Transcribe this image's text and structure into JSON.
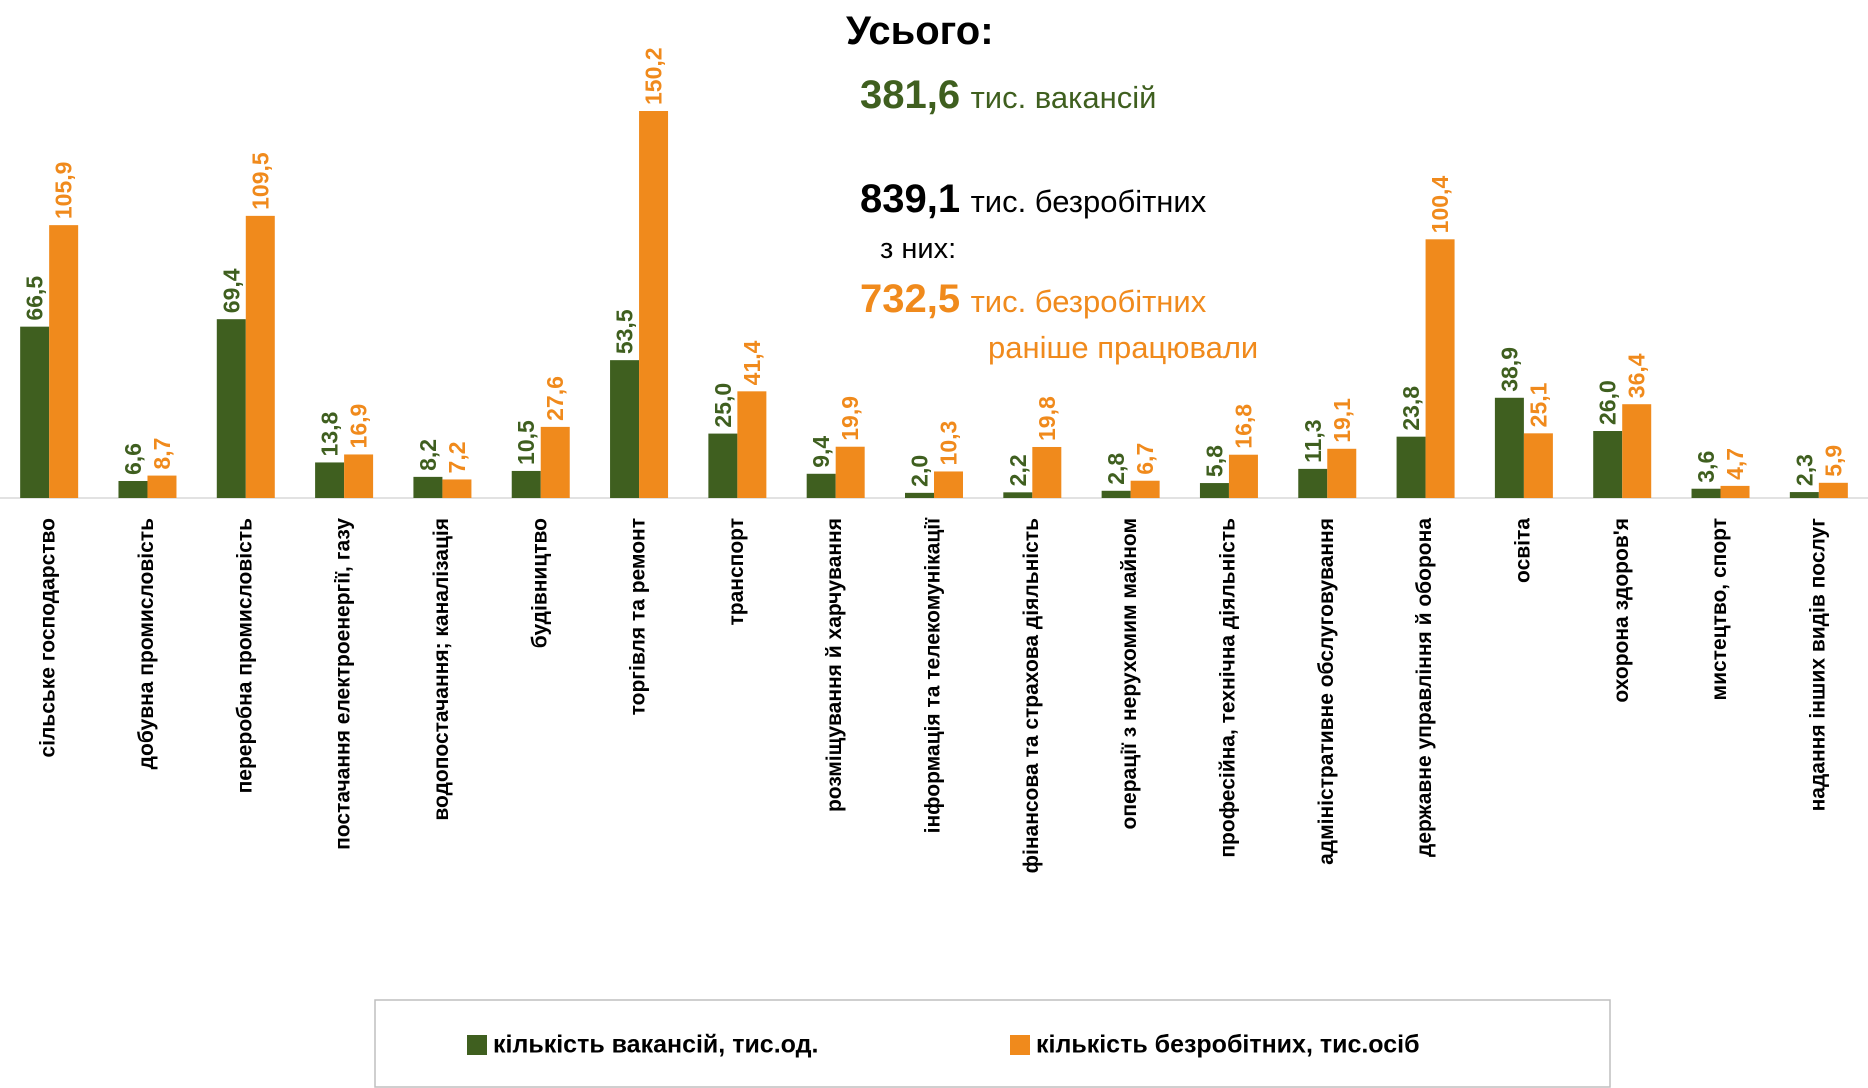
{
  "chart_data": {
    "type": "bar",
    "categories": [
      "сільське господарство",
      "добувна промисловість",
      "переробна промисловість",
      "постачання електроенергії, газу",
      "водопостачання; каналізація",
      "будівництво",
      "торгівля та ремонт",
      "транспорт",
      "розміщування й харчування",
      "інформація та телекомунікації",
      "фінансова та страхова діяльність",
      "операції з нерухомим майном",
      "професійна, технічна діяльність",
      "адміністративне обслуговування",
      "державне управління й оборона",
      "освіта",
      "охорона здоров'я",
      "мистецтво, спорт",
      "надання інших видів послуг"
    ],
    "series": [
      {
        "name": "кількість вакансій, тис.од.",
        "color": "#3f5f1f",
        "values": [
          66.5,
          6.6,
          69.4,
          13.8,
          8.2,
          10.5,
          53.5,
          25.0,
          9.4,
          2.0,
          2.2,
          2.8,
          5.8,
          11.3,
          23.8,
          38.9,
          26.0,
          3.6,
          2.3
        ],
        "value_labels": [
          "66,5",
          "6,6",
          "69,4",
          "13,8",
          "8,2",
          "10,5",
          "53,5",
          "25,0",
          "9,4",
          "2,0",
          "2,2",
          "2,8",
          "5,8",
          "11,3",
          "23,8",
          "38,9",
          "26,0",
          "3,6",
          "2,3"
        ]
      },
      {
        "name": "кількість безробітних, тис.осіб",
        "color": "#f08a1c",
        "values": [
          105.9,
          8.7,
          109.5,
          16.9,
          7.2,
          27.6,
          150.2,
          41.4,
          19.9,
          10.3,
          19.8,
          6.7,
          16.8,
          19.1,
          100.4,
          25.1,
          36.4,
          4.7,
          5.9
        ],
        "value_labels": [
          "105,9",
          "8,7",
          "109,5",
          "16,9",
          "7,2",
          "27,6",
          "150,2",
          "41,4",
          "19,9",
          "10,3",
          "19,8",
          "6,7",
          "16,8",
          "19,1",
          "100,4",
          "25,1",
          "36,4",
          "4,7",
          "5,9"
        ]
      }
    ],
    "legend": "bottom",
    "annotations": {
      "heading": "Усього:",
      "vacancies": "381,6",
      "vacancies_text": "тис. вакансій",
      "unemployed": "839,1",
      "unemployed_text": "тис. безробітних",
      "of_them": "з них:",
      "worked": "732,5",
      "worked_text": "тис. безробітних",
      "worked_text2": "раніше працювали"
    }
  }
}
